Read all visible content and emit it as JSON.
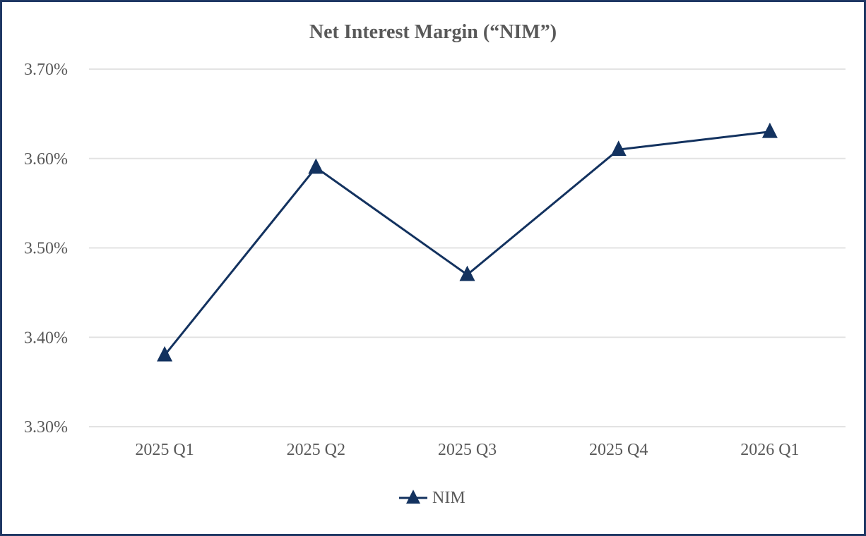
{
  "chart_data": {
    "type": "line",
    "title": "Net Interest Margin (“NIM”)",
    "categories": [
      "2025 Q1",
      "2025 Q2",
      "2025 Q3",
      "2025 Q4",
      "2026 Q1"
    ],
    "series": [
      {
        "name": "NIM",
        "values": [
          3.38,
          3.59,
          3.47,
          3.61,
          3.63
        ],
        "color": "#13325f",
        "marker": "triangle"
      }
    ],
    "ylim": [
      3.3,
      3.7
    ],
    "yticks": [
      3.3,
      3.4,
      3.5,
      3.6,
      3.7
    ],
    "ytick_labels": [
      "3.30%",
      "3.40%",
      "3.50%",
      "3.60%",
      "3.70%"
    ],
    "grid": true,
    "legend_position": "bottom",
    "border_color": "#1f3864",
    "grid_color": "#e3e3e3"
  }
}
